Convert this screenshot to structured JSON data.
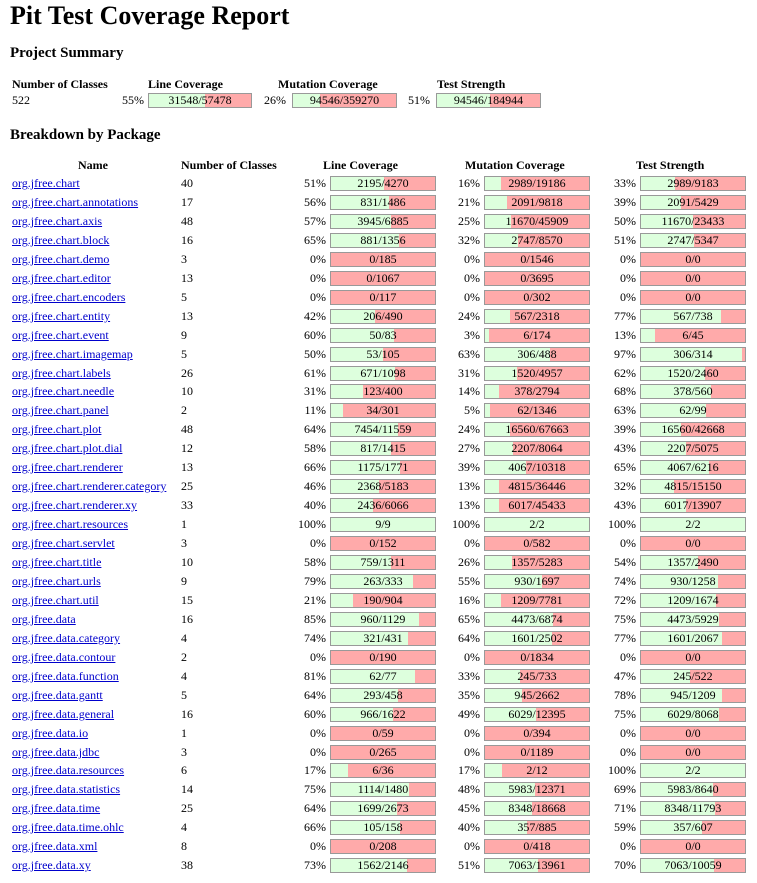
{
  "title": "Pit Test Coverage Report",
  "summary": {
    "heading": "Project Summary",
    "headers": {
      "classes": "Number of Classes",
      "line": "Line Coverage",
      "mutation": "Mutation Coverage",
      "strength": "Test Strength"
    },
    "classes": "522",
    "line": {
      "pct": "55%",
      "text": "31548/57478",
      "fraction": 0.55
    },
    "mutation": {
      "pct": "26%",
      "text": "94546/359270",
      "fraction": 0.26
    },
    "strength": {
      "pct": "51%",
      "text": "94546/184944",
      "fraction": 0.51
    }
  },
  "breakdown": {
    "heading": "Breakdown by Package",
    "headers": {
      "name": "Name",
      "classes": "Number of Classes",
      "line": "Line Coverage",
      "mutation": "Mutation Coverage",
      "strength": "Test Strength"
    },
    "rows": [
      [
        "org.jfree.chart",
        "40",
        "51%",
        "2195/4270",
        "16%",
        "2989/19186",
        "33%",
        "2989/9183"
      ],
      [
        "org.jfree.chart.annotations",
        "17",
        "56%",
        "831/1486",
        "21%",
        "2091/9818",
        "39%",
        "2091/5429"
      ],
      [
        "org.jfree.chart.axis",
        "48",
        "57%",
        "3945/6885",
        "25%",
        "11670/45909",
        "50%",
        "11670/23433"
      ],
      [
        "org.jfree.chart.block",
        "16",
        "65%",
        "881/1356",
        "32%",
        "2747/8570",
        "51%",
        "2747/5347"
      ],
      [
        "org.jfree.chart.demo",
        "3",
        "0%",
        "0/185",
        "0%",
        "0/1546",
        "0%",
        "0/0"
      ],
      [
        "org.jfree.chart.editor",
        "13",
        "0%",
        "0/1067",
        "0%",
        "0/3695",
        "0%",
        "0/0"
      ],
      [
        "org.jfree.chart.encoders",
        "5",
        "0%",
        "0/117",
        "0%",
        "0/302",
        "0%",
        "0/0"
      ],
      [
        "org.jfree.chart.entity",
        "13",
        "42%",
        "206/490",
        "24%",
        "567/2318",
        "77%",
        "567/738"
      ],
      [
        "org.jfree.chart.event",
        "9",
        "60%",
        "50/83",
        "3%",
        "6/174",
        "13%",
        "6/45"
      ],
      [
        "org.jfree.chart.imagemap",
        "5",
        "50%",
        "53/105",
        "63%",
        "306/488",
        "97%",
        "306/314"
      ],
      [
        "org.jfree.chart.labels",
        "26",
        "61%",
        "671/1098",
        "31%",
        "1520/4957",
        "62%",
        "1520/2460"
      ],
      [
        "org.jfree.chart.needle",
        "10",
        "31%",
        "123/400",
        "14%",
        "378/2794",
        "68%",
        "378/560"
      ],
      [
        "org.jfree.chart.panel",
        "2",
        "11%",
        "34/301",
        "5%",
        "62/1346",
        "63%",
        "62/99"
      ],
      [
        "org.jfree.chart.plot",
        "48",
        "64%",
        "7454/11559",
        "24%",
        "16560/67663",
        "39%",
        "16560/42668"
      ],
      [
        "org.jfree.chart.plot.dial",
        "12",
        "58%",
        "817/1415",
        "27%",
        "2207/8064",
        "43%",
        "2207/5075"
      ],
      [
        "org.jfree.chart.renderer",
        "13",
        "66%",
        "1175/1771",
        "39%",
        "4067/10318",
        "65%",
        "4067/6216"
      ],
      [
        "org.jfree.chart.renderer.category",
        "25",
        "46%",
        "2368/5183",
        "13%",
        "4815/36446",
        "32%",
        "4815/15150"
      ],
      [
        "org.jfree.chart.renderer.xy",
        "33",
        "40%",
        "2436/6066",
        "13%",
        "6017/45433",
        "43%",
        "6017/13907"
      ],
      [
        "org.jfree.chart.resources",
        "1",
        "100%",
        "9/9",
        "100%",
        "2/2",
        "100%",
        "2/2"
      ],
      [
        "org.jfree.chart.servlet",
        "3",
        "0%",
        "0/152",
        "0%",
        "0/582",
        "0%",
        "0/0"
      ],
      [
        "org.jfree.chart.title",
        "10",
        "58%",
        "759/1311",
        "26%",
        "1357/5283",
        "54%",
        "1357/2490"
      ],
      [
        "org.jfree.chart.urls",
        "9",
        "79%",
        "263/333",
        "55%",
        "930/1697",
        "74%",
        "930/1258"
      ],
      [
        "org.jfree.chart.util",
        "15",
        "21%",
        "190/904",
        "16%",
        "1209/7781",
        "72%",
        "1209/1674"
      ],
      [
        "org.jfree.data",
        "16",
        "85%",
        "960/1129",
        "65%",
        "4473/6874",
        "75%",
        "4473/5929"
      ],
      [
        "org.jfree.data.category",
        "4",
        "74%",
        "321/431",
        "64%",
        "1601/2502",
        "77%",
        "1601/2067"
      ],
      [
        "org.jfree.data.contour",
        "2",
        "0%",
        "0/190",
        "0%",
        "0/1834",
        "0%",
        "0/0"
      ],
      [
        "org.jfree.data.function",
        "4",
        "81%",
        "62/77",
        "33%",
        "245/733",
        "47%",
        "245/522"
      ],
      [
        "org.jfree.data.gantt",
        "5",
        "64%",
        "293/458",
        "35%",
        "945/2662",
        "78%",
        "945/1209"
      ],
      [
        "org.jfree.data.general",
        "16",
        "60%",
        "966/1622",
        "49%",
        "6029/12395",
        "75%",
        "6029/8068"
      ],
      [
        "org.jfree.data.io",
        "1",
        "0%",
        "0/59",
        "0%",
        "0/394",
        "0%",
        "0/0"
      ],
      [
        "org.jfree.data.jdbc",
        "3",
        "0%",
        "0/265",
        "0%",
        "0/1189",
        "0%",
        "0/0"
      ],
      [
        "org.jfree.data.resources",
        "6",
        "17%",
        "6/36",
        "17%",
        "2/12",
        "100%",
        "2/2"
      ],
      [
        "org.jfree.data.statistics",
        "14",
        "75%",
        "1114/1480",
        "48%",
        "5983/12371",
        "69%",
        "5983/8640"
      ],
      [
        "org.jfree.data.time",
        "25",
        "64%",
        "1699/2673",
        "45%",
        "8348/18668",
        "71%",
        "8348/11793"
      ],
      [
        "org.jfree.data.time.ohlc",
        "4",
        "66%",
        "105/158",
        "40%",
        "357/885",
        "59%",
        "357/607"
      ],
      [
        "org.jfree.data.xml",
        "8",
        "0%",
        "0/208",
        "0%",
        "0/418",
        "0%",
        "0/0"
      ],
      [
        "org.jfree.data.xy",
        "38",
        "73%",
        "1562/2146",
        "51%",
        "7063/13961",
        "70%",
        "7063/10059"
      ]
    ]
  }
}
